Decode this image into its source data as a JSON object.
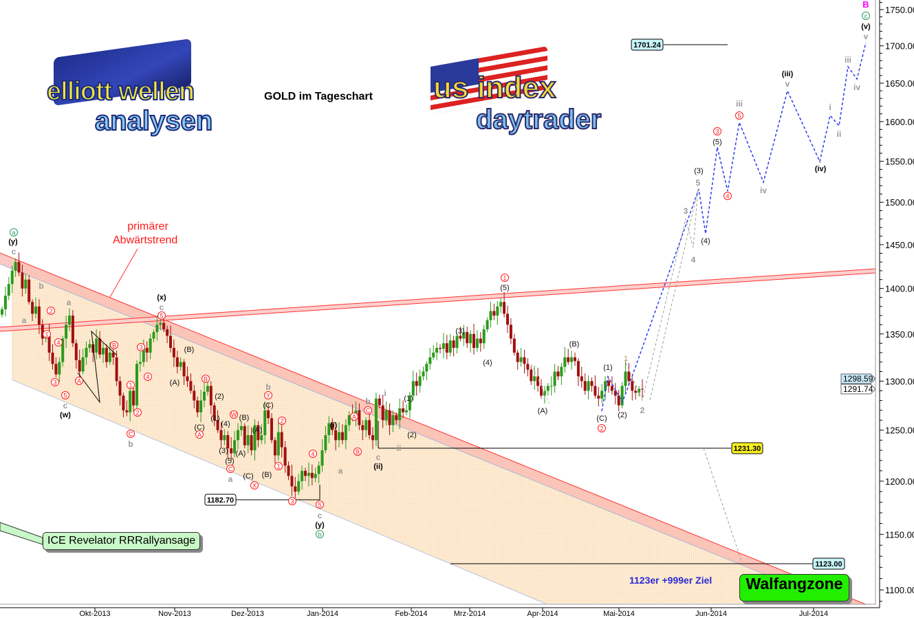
{
  "title": "GOLD im Tageschart",
  "logos": {
    "left": "elliott wellen analysen",
    "right": "us index daytrader"
  },
  "annotations": {
    "trend_label_line1": "primärer",
    "trend_label_line2": "Abwärtstrend",
    "ice_box": "ICE Revelator RRRallyansage",
    "target_text": "1123er +999er Ziel",
    "zone_box": "Walfangzone"
  },
  "colors": {
    "up": "#2a9a1a",
    "down": "#a01010",
    "projection": "#2a3cf0",
    "trend": "#ff3030",
    "channel_fill": "#fde6c8",
    "zone": "#22ee00",
    "magenta": "#ff00ff"
  },
  "chart_data": {
    "type": "candlestick",
    "title": "GOLD im Tageschart",
    "y_scale": "log",
    "ylim": [
      1085,
      1760
    ],
    "y_ticks": [
      "1100.00",
      "1150.00",
      "1200.00",
      "1250.00",
      "1300.00",
      "1350.00",
      "1400.00",
      "1450.00",
      "1500.00",
      "1550.00",
      "1600.00",
      "1650.00",
      "1700.00",
      "1750.00"
    ],
    "x_ticks": [
      "Okt-2013",
      "Nov-2013",
      "Dez-2013",
      "Jan-2014",
      "Feb-2014",
      "Mrz-2014",
      "Apr-2014",
      "Mai-2014",
      "Jun-2014",
      "Jul-2014"
    ],
    "closes": [
      1377,
      1392,
      1405,
      1420,
      1430,
      1418,
      1400,
      1410,
      1385,
      1372,
      1380,
      1360,
      1345,
      1350,
      1330,
      1318,
      1307,
      1320,
      1345,
      1360,
      1370,
      1340,
      1322,
      1310,
      1325,
      1335,
      1339,
      1330,
      1345,
      1328,
      1335,
      1320,
      1330,
      1325,
      1300,
      1285,
      1270,
      1268,
      1290,
      1275,
      1318,
      1320,
      1335,
      1330,
      1345,
      1352,
      1360,
      1362,
      1355,
      1348,
      1335,
      1325,
      1315,
      1320,
      1305,
      1300,
      1290,
      1280,
      1268,
      1280,
      1289,
      1295,
      1275,
      1260,
      1250,
      1240,
      1245,
      1232,
      1227,
      1240,
      1250,
      1254,
      1235,
      1245,
      1230,
      1255,
      1240,
      1245,
      1270,
      1262,
      1240,
      1225,
      1248,
      1233,
      1215,
      1205,
      1195,
      1190,
      1200,
      1210,
      1205,
      1208,
      1203,
      1207,
      1215,
      1230,
      1245,
      1257,
      1250,
      1240,
      1248,
      1240,
      1255,
      1265,
      1262,
      1270,
      1255,
      1250,
      1260,
      1245,
      1240,
      1282,
      1275,
      1260,
      1270,
      1255,
      1265,
      1260,
      1272,
      1268,
      1270,
      1285,
      1300,
      1295,
      1305,
      1310,
      1318,
      1325,
      1330,
      1335,
      1334,
      1340,
      1330,
      1343,
      1335,
      1348,
      1345,
      1352,
      1340,
      1350,
      1335,
      1345,
      1340,
      1355,
      1365,
      1375,
      1370,
      1380,
      1385,
      1372,
      1360,
      1345,
      1330,
      1320,
      1325,
      1318,
      1312,
      1300,
      1305,
      1295,
      1285,
      1290,
      1295,
      1295,
      1310,
      1305,
      1315,
      1325,
      1320,
      1325,
      1321,
      1305,
      1300,
      1290,
      1300,
      1295,
      1285,
      1282,
      1290,
      1300,
      1295,
      1290,
      1285,
      1275,
      1295,
      1310,
      1300,
      1290,
      1288,
      1292,
      1291.74
    ],
    "price_tags": [
      {
        "value": "1298.59"
      },
      {
        "value": "1291.74"
      }
    ],
    "levels": [
      {
        "value": "1701.24"
      },
      {
        "value": "1231.30"
      },
      {
        "value": "1182.70"
      },
      {
        "value": "1123.00"
      }
    ],
    "wave_labels": [
      {
        "t": "a",
        "s": "G"
      },
      {
        "t": "(y)",
        "s": "k"
      },
      {
        "t": "c",
        "s": "g"
      },
      {
        "t": "b",
        "s": "g"
      },
      {
        "t": "a",
        "s": "g"
      },
      {
        "t": "a",
        "s": "g"
      },
      {
        "t": "2",
        "s": "r"
      },
      {
        "t": "1",
        "s": "r"
      },
      {
        "t": "4",
        "s": "r"
      },
      {
        "t": "3",
        "s": "r"
      },
      {
        "t": "5",
        "s": "r"
      },
      {
        "t": "c",
        "s": "g"
      },
      {
        "t": "(w)",
        "s": "k"
      },
      {
        "t": "A",
        "s": "r"
      },
      {
        "t": "B",
        "s": "r"
      },
      {
        "t": "1",
        "s": "r"
      },
      {
        "t": "2",
        "s": "r"
      },
      {
        "t": "C",
        "s": "r"
      },
      {
        "t": "b",
        "s": "g"
      },
      {
        "t": "3",
        "s": "r"
      },
      {
        "t": "4",
        "s": "r"
      },
      {
        "t": "5",
        "s": "r"
      },
      {
        "t": "c",
        "s": "g"
      },
      {
        "t": "(x)",
        "s": "k"
      },
      {
        "t": "(B)",
        "s": "n"
      },
      {
        "t": "(A)",
        "s": "n"
      },
      {
        "t": "B",
        "s": "r"
      },
      {
        "t": "(2)",
        "s": "n"
      },
      {
        "t": "(1)",
        "s": "n"
      },
      {
        "t": "(C)",
        "s": "n"
      },
      {
        "t": "A",
        "s": "r"
      },
      {
        "t": "W",
        "s": "r"
      },
      {
        "t": "(4)",
        "s": "n"
      },
      {
        "t": "(B)",
        "s": "n"
      },
      {
        "t": "(3)",
        "s": "n"
      },
      {
        "t": "(5)",
        "s": "n"
      },
      {
        "t": "C",
        "s": "r"
      },
      {
        "t": "a",
        "s": "g"
      },
      {
        "t": "(A)",
        "s": "n"
      },
      {
        "t": "b",
        "s": "g"
      },
      {
        "t": "Y",
        "s": "r"
      },
      {
        "t": "(C)",
        "s": "n"
      },
      {
        "t": "2",
        "s": "r"
      },
      {
        "t": "(A)",
        "s": "n"
      },
      {
        "t": "(B)",
        "s": "n"
      },
      {
        "t": "(C)",
        "s": "n"
      },
      {
        "t": "X",
        "s": "r"
      },
      {
        "t": "1",
        "s": "r"
      },
      {
        "t": "3",
        "s": "r"
      },
      {
        "t": "4",
        "s": "r"
      },
      {
        "t": "5",
        "s": "r"
      },
      {
        "t": "c",
        "s": "g"
      },
      {
        "t": "(y)",
        "s": "k"
      },
      {
        "t": "b",
        "s": "G"
      },
      {
        "t": "(i)",
        "s": "k"
      },
      {
        "t": "a",
        "s": "g"
      },
      {
        "t": "A",
        "s": "r"
      },
      {
        "t": "B",
        "s": "r"
      },
      {
        "t": "b",
        "s": "g"
      },
      {
        "t": "C",
        "s": "r"
      },
      {
        "t": "i",
        "s": "g"
      },
      {
        "t": "(1)",
        "s": "n"
      },
      {
        "t": "(2)",
        "s": "n"
      },
      {
        "t": "ii",
        "s": "g"
      },
      {
        "t": "c",
        "s": "g"
      },
      {
        "t": "(ii)",
        "s": "k"
      },
      {
        "t": "(3)",
        "s": "n"
      },
      {
        "t": "(4)",
        "s": "n"
      },
      {
        "t": "1",
        "s": "r"
      },
      {
        "t": "(5)",
        "s": "n"
      },
      {
        "t": "(A)",
        "s": "n"
      },
      {
        "t": "(B)",
        "s": "n"
      },
      {
        "t": "(1)",
        "s": "n"
      },
      {
        "t": "(C)",
        "s": "n"
      },
      {
        "t": "2",
        "s": "r"
      },
      {
        "t": "(2)",
        "s": "n"
      },
      {
        "t": "1",
        "s": "o"
      },
      {
        "t": "2",
        "s": "g"
      },
      {
        "t": "3",
        "s": "g"
      },
      {
        "t": "4",
        "s": "g"
      },
      {
        "t": "5",
        "s": "g"
      },
      {
        "t": "(3)",
        "s": "n"
      },
      {
        "t": "(4)",
        "s": "n"
      },
      {
        "t": "3",
        "s": "r"
      },
      {
        "t": "(5)",
        "s": "n"
      },
      {
        "t": "4",
        "s": "r"
      },
      {
        "t": "5",
        "s": "r"
      },
      {
        "t": "iii",
        "s": "g"
      },
      {
        "t": "iv",
        "s": "g"
      },
      {
        "t": "(iii)",
        "s": "k"
      },
      {
        "t": "v",
        "s": "g"
      },
      {
        "t": "(iv)",
        "s": "k"
      },
      {
        "t": "i",
        "s": "g"
      },
      {
        "t": "ii",
        "s": "g"
      },
      {
        "t": "iii",
        "s": "g"
      },
      {
        "t": "iv",
        "s": "g"
      },
      {
        "t": "v",
        "s": "g"
      },
      {
        "t": "(v)",
        "s": "k"
      },
      {
        "t": "c",
        "s": "G"
      },
      {
        "t": "B",
        "s": "m"
      }
    ]
  }
}
